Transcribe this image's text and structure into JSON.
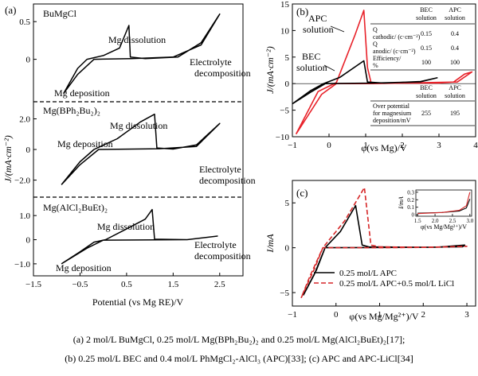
{
  "chart_data": [
    {
      "type": "line",
      "panel_label": "(a)",
      "xlabel": "Potential (vs Mg RE)/V",
      "ylabel": "J/(mA·cm⁻²)",
      "xlim": [
        -1.5,
        3.0
      ],
      "xticks": [
        -1.5,
        -0.5,
        0.5,
        1.5,
        2.5
      ],
      "xtick_labels": [
        "−1.5",
        "−0.5",
        "0.5",
        "1.5",
        "2.5"
      ],
      "subplots": [
        {
          "label": "BuMgCl",
          "yticks": [
            0,
            0.5
          ],
          "ytick_labels": [
            "0",
            "0.5"
          ],
          "ylim": [
            -0.5,
            0.65
          ],
          "annotations": [
            "Mg dissolution",
            "Mg deposition",
            "Electrolyte decomposition"
          ],
          "curve": [
            [
              -0.85,
              -0.45
            ],
            [
              -0.55,
              -0.12
            ],
            [
              -0.35,
              0.0
            ],
            [
              0.0,
              0.05
            ],
            [
              0.35,
              0.15
            ],
            [
              0.55,
              0.45
            ],
            [
              0.58,
              0.03
            ],
            [
              0.9,
              0.01
            ],
            [
              1.6,
              0.03
            ],
            [
              2.1,
              0.22
            ],
            [
              2.5,
              0.6
            ],
            [
              2.1,
              0.19
            ],
            [
              1.5,
              0.03
            ],
            [
              0.6,
              0.01
            ],
            [
              -0.2,
              0.0
            ],
            [
              -0.55,
              -0.2
            ],
            [
              -0.85,
              -0.45
            ]
          ]
        },
        {
          "label": "Mg(BPh₂Bu₂)₂",
          "yticks": [
            -2,
            0,
            2
          ],
          "ytick_labels": [
            "−2.0",
            "0",
            "2.0"
          ],
          "ylim": [
            -2.8,
            2.7
          ],
          "annotations": [
            "Mg dissolution",
            "Mg deposition",
            "Electrolyte decomposition"
          ],
          "curve": [
            [
              -0.9,
              -2.3
            ],
            [
              -0.5,
              -0.8
            ],
            [
              -0.2,
              0.0
            ],
            [
              0.3,
              0.7
            ],
            [
              0.8,
              1.8
            ],
            [
              1.1,
              2.3
            ],
            [
              1.15,
              0.1
            ],
            [
              1.5,
              0.03
            ],
            [
              2.0,
              0.3
            ],
            [
              2.5,
              1.7
            ],
            [
              2.0,
              0.2
            ],
            [
              1.2,
              0.05
            ],
            [
              -0.1,
              0.0
            ],
            [
              -0.5,
              -1.0
            ],
            [
              -0.9,
              -2.3
            ]
          ]
        },
        {
          "label": "Mg(AlCl₂BuEt)₂",
          "yticks": [
            -1,
            0,
            1
          ],
          "ytick_labels": [
            "−1.0",
            "0",
            "1.0"
          ],
          "ylim": [
            -1.3,
            1.5
          ],
          "annotations": [
            "Mg dissolution",
            "Mg deposition",
            "Electrolyte decomposition"
          ],
          "curve": [
            [
              -0.9,
              -1.0
            ],
            [
              -0.5,
              -0.5
            ],
            [
              -0.2,
              -0.1
            ],
            [
              0.05,
              0.0
            ],
            [
              0.5,
              0.45
            ],
            [
              0.9,
              0.85
            ],
            [
              1.05,
              1.25
            ],
            [
              1.1,
              0.02
            ],
            [
              1.8,
              0.0
            ],
            [
              2.45,
              0.15
            ],
            [
              1.8,
              0.0
            ],
            [
              0.0,
              -0.02
            ],
            [
              -0.35,
              -0.35
            ],
            [
              -0.9,
              -1.0
            ]
          ]
        }
      ]
    },
    {
      "type": "line",
      "panel_label": "(b)",
      "xlabel": "φ(vs Mg)/V",
      "ylabel": "J/(mA·cm⁻²)",
      "xlim": [
        -1,
        4
      ],
      "ylim": [
        -10,
        15
      ],
      "xticks": [
        -1,
        0,
        1,
        2,
        3,
        4
      ],
      "yticks": [
        -10,
        -5,
        0,
        5,
        10,
        15
      ],
      "annotations": [
        "APC solution",
        "BEC solution"
      ],
      "series": [
        {
          "name": "APC",
          "color": "#e8222a",
          "values": [
            [
              -0.9,
              -9.5
            ],
            [
              -0.3,
              -1.5
            ],
            [
              0.2,
              0.2
            ],
            [
              0.7,
              9.0
            ],
            [
              0.95,
              13.8
            ],
            [
              1.05,
              3.0
            ],
            [
              1.15,
              0.1
            ],
            [
              3.0,
              0.1
            ],
            [
              3.4,
              0.3
            ],
            [
              3.7,
              1.8
            ],
            [
              3.9,
              2.2
            ],
            [
              3.5,
              0.3
            ],
            [
              1.2,
              0.0
            ],
            [
              0.2,
              0.0
            ],
            [
              -0.2,
              -2.0
            ],
            [
              -0.9,
              -9.5
            ]
          ]
        },
        {
          "name": "BEC",
          "color": "#000000",
          "values": [
            [
              -1.0,
              -3.8
            ],
            [
              -0.5,
              -1.3
            ],
            [
              -0.15,
              0.0
            ],
            [
              0.3,
              1.2
            ],
            [
              0.95,
              4.3
            ],
            [
              1.05,
              0.3
            ],
            [
              1.5,
              0.1
            ],
            [
              2.5,
              0.4
            ],
            [
              2.95,
              1.1
            ],
            [
              2.5,
              0.35
            ],
            [
              1.2,
              0.1
            ],
            [
              -0.1,
              0.0
            ],
            [
              -0.5,
              -1.6
            ],
            [
              -1.0,
              -3.8
            ]
          ]
        }
      ],
      "table_top": {
        "headers": [
          "",
          "BEC solution",
          "APC solution"
        ],
        "rows": [
          [
            "Q cathodic/ (c·cm⁻²)",
            "0.15",
            "0.4"
          ],
          [
            "Q anodic/ (c·cm⁻²)",
            "0.15",
            "0.4"
          ],
          [
            "Efficiency/ %",
            "100",
            "100"
          ]
        ]
      },
      "table_bottom": {
        "headers": [
          "",
          "BEC solution",
          "APC solution"
        ],
        "rows": [
          [
            "Over potential for magnesium deposition/mV",
            "255",
            "195"
          ]
        ]
      }
    },
    {
      "type": "line",
      "panel_label": "(c)",
      "xlabel": "φ(vs Mg/Mg²⁺)/V",
      "ylabel": "I/mA",
      "xlim": [
        -1,
        3.2
      ],
      "ylim": [
        -6.5,
        7.5
      ],
      "xticks": [
        -1,
        0,
        1,
        2,
        3
      ],
      "yticks": [
        -5,
        0,
        5
      ],
      "series": [
        {
          "name": "0.25 mol/L APC",
          "color": "#000000",
          "dash": "solid",
          "values": [
            [
              -0.75,
              -5.3
            ],
            [
              -0.45,
              -2.5
            ],
            [
              -0.25,
              0.0
            ],
            [
              0.1,
              1.8
            ],
            [
              0.45,
              4.7
            ],
            [
              0.6,
              0.3
            ],
            [
              0.75,
              0.1
            ],
            [
              2.0,
              0.05
            ],
            [
              2.9,
              0.1
            ],
            [
              2.95,
              0.3
            ],
            [
              2.3,
              0.05
            ],
            [
              0.7,
              0.02
            ],
            [
              -0.25,
              0.0
            ],
            [
              -0.5,
              -3.0
            ],
            [
              -0.75,
              -5.3
            ]
          ]
        },
        {
          "name": "0.25 mol/L APC+0.5 mol/L LiCl",
          "color": "#d62728",
          "dash": "dashed",
          "values": [
            [
              -0.8,
              -5.6
            ],
            [
              -0.5,
              -2.4
            ],
            [
              -0.3,
              0.0
            ],
            [
              0.2,
              3.0
            ],
            [
              0.65,
              6.7
            ],
            [
              0.8,
              0.3
            ],
            [
              1.0,
              0.1
            ],
            [
              2.0,
              0.05
            ],
            [
              3.0,
              0.15
            ],
            [
              2.2,
              0.05
            ],
            [
              1.0,
              0.0
            ],
            [
              -0.3,
              0.0
            ],
            [
              -0.6,
              -3.2
            ],
            [
              -0.8,
              -5.6
            ]
          ]
        }
      ],
      "inset": {
        "xlabel": "φ(vs Mg/Mg²⁺)/V",
        "ylabel": "I/mA",
        "xlim": [
          1.45,
          3.05
        ],
        "ylim": [
          -0.02,
          0.33
        ],
        "xticks": [
          1.5,
          2.0,
          2.5,
          3.0
        ],
        "yticks": [
          0,
          0.1,
          0.2,
          0.3
        ],
        "ytick_labels": [
          "0",
          "0.1",
          "0.2",
          "0.3"
        ],
        "series": [
          {
            "name": "APC",
            "color": "#000000",
            "values": [
              [
                1.5,
                0.02
              ],
              [
                2.2,
                0.03
              ],
              [
                2.7,
                0.05
              ],
              [
                2.9,
                0.09
              ],
              [
                3.0,
                0.21
              ]
            ]
          },
          {
            "name": "APC+LiCl",
            "color": "#d62728",
            "values": [
              [
                1.5,
                0.015
              ],
              [
                2.2,
                0.03
              ],
              [
                2.7,
                0.06
              ],
              [
                2.9,
                0.12
              ],
              [
                3.0,
                0.3
              ]
            ]
          }
        ]
      }
    }
  ],
  "caption": {
    "line1": "(a)  2  mol/L  BuMgCl,  0.25  mol/L   Mg(BPh₂Bu₂)₂ and 0.25 mol/L Mg(AlCl₂BuEt)₂[17];",
    "line2": "(b) 0.25 mol/L BEC and 0.4 mol/L PhMgCl₂-AlCl₃ (APC)[33]; (c) APC and APC-LiCl[34]"
  }
}
